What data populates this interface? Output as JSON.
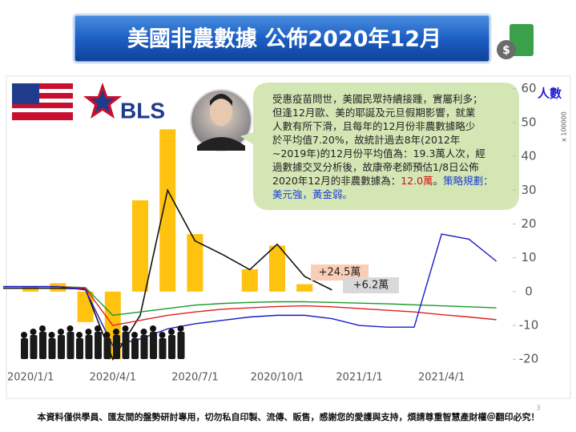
{
  "chart_data": {
    "type": "combo",
    "title": "美國非農數據 公佈2020年12月",
    "categories": [
      null,
      "2020/1/1",
      null,
      null,
      "2020/4/1",
      null,
      null,
      "2020/7/1",
      null,
      null,
      "2020/10/1",
      null,
      null,
      "2021/1/1",
      null,
      null,
      "2021/4/1",
      null,
      null
    ],
    "bars": {
      "color": "#ffc20e",
      "values": [
        null,
        1.5,
        2.5,
        -9,
        -20,
        27,
        48,
        17,
        null,
        6.6,
        13.6,
        2.2,
        null,
        null,
        null,
        null,
        null,
        null,
        null
      ]
    },
    "series": [
      {
        "color": "#111111",
        "values": [
          1,
          1,
          1,
          0.8,
          -20,
          -7,
          30,
          15,
          11,
          6.5,
          14,
          4.5,
          0.5,
          null,
          null,
          null,
          null,
          null,
          null
        ]
      },
      {
        "color": "#1a9a2a",
        "values": [
          1.5,
          1.5,
          1.5,
          1.2,
          -7,
          -6,
          -5,
          -4,
          -3.5,
          -3.2,
          -3,
          -3,
          -3.2,
          -3.4,
          -3.6,
          -3.9,
          -4.2,
          -4.5,
          -4.8
        ]
      },
      {
        "color": "#e02020",
        "values": [
          1.5,
          1.5,
          1.5,
          1,
          -10,
          -8.5,
          -7,
          -6,
          -5.2,
          -4.8,
          -4.4,
          -4.2,
          -4.5,
          -5,
          -5.5,
          -6,
          -6.8,
          -7.5,
          -8.3
        ]
      },
      {
        "color": "#1a1acc",
        "values": [
          1.5,
          1.5,
          1.5,
          0.5,
          -16,
          -14,
          -11,
          -9.5,
          -8.5,
          -7.5,
          -7,
          -7,
          -8,
          -10,
          -10.5,
          -10.5,
          17,
          15.5,
          9
        ]
      }
    ],
    "ylim": [
      -28,
      63
    ],
    "yticks": [
      -20,
      -10,
      0,
      10,
      20,
      30,
      40,
      50,
      60
    ],
    "ylabel": "人數",
    "ylabel_unit": "x 100000",
    "annotations": [
      "+24.5萬",
      "+6.2萬"
    ]
  },
  "logo": "BLS",
  "bubble": {
    "lines": [
      [
        {
          "text": "受惠疫苗問世，美國民眾持續接踵，實屬利多；",
          "color": "#222"
        }
      ],
      [
        {
          "text": "但逢12月歐、美的耶誕及元旦假期影響，就業",
          "color": "#222"
        }
      ],
      [
        {
          "text": "人數有所下滑，且每年的12月份非農數據略少",
          "color": "#222"
        }
      ],
      [
        {
          "text": "於平均值7.20%，故統計過去8年(2012年",
          "color": "#222"
        }
      ],
      [
        {
          "text": "~2019年)的12月份平均值為：19.3萬人次，經",
          "color": "#222"
        }
      ],
      [
        {
          "text": "過數據交叉分析後，故康帝老師預估1/8日公佈",
          "color": "#222"
        }
      ],
      [
        {
          "text": "2020年12月的非農數據為：",
          "color": "#222"
        },
        {
          "text": "12.0萬",
          "color": "#d01010"
        },
        {
          "text": "。",
          "color": "#222"
        },
        {
          "text": "策略規劃：",
          "color": "#1a3fd0"
        }
      ],
      [
        {
          "text": "美元強，黃金弱。",
          "color": "#1a3fd0"
        }
      ]
    ]
  },
  "page_number": "3",
  "footer": "本資料僅供學員、匯友間的盤勢研討專用，切勿私自印製、流傳、販售，感謝您的愛護與支持，煩請尊重智慧產財權＠翻印必究！"
}
